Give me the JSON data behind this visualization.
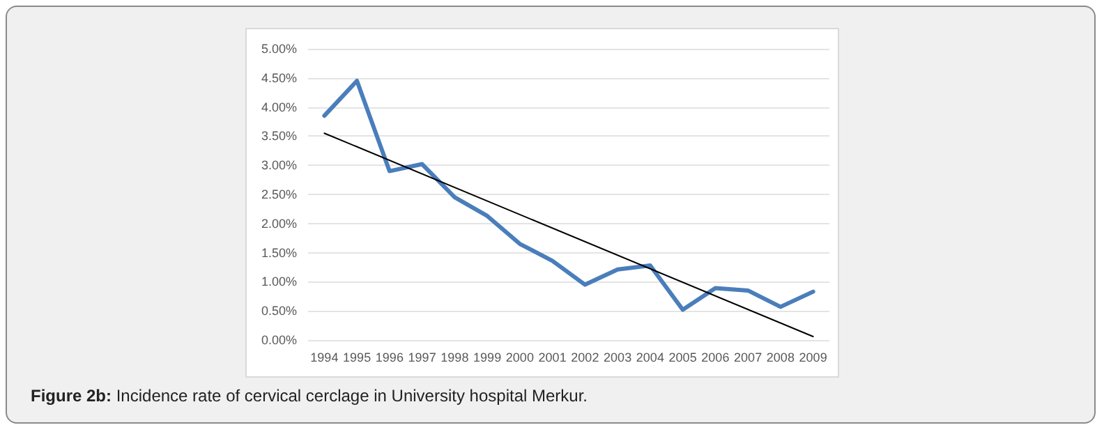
{
  "chart_data": {
    "type": "line",
    "annotations": [
      "Figure 2b: Incidence rate of cervical cerclage in University hospital Merkur."
    ],
    "categories": [
      "1994",
      "1995",
      "1996",
      "1997",
      "1998",
      "1999",
      "2000",
      "2001",
      "2002",
      "2003",
      "2004",
      "2005",
      "2006",
      "2007",
      "2008",
      "2009"
    ],
    "series": [
      {
        "color": "#4a7ebb",
        "values": [
          3.85,
          4.45,
          2.9,
          3.02,
          2.45,
          2.13,
          1.65,
          1.36,
          0.95,
          1.21,
          1.28,
          0.52,
          0.89,
          0.85,
          0.57,
          0.83
        ]
      },
      {
        "type": "line",
        "color": "#000000",
        "values": [
          3.55,
          null,
          null,
          null,
          null,
          null,
          null,
          null,
          null,
          null,
          null,
          null,
          null,
          null,
          null,
          0.06
        ]
      }
    ],
    "ylim": [
      0,
      5
    ],
    "yticks": [
      {
        "value": 0,
        "label": "0.00%"
      },
      {
        "value": 0.5,
        "label": "0.50%"
      },
      {
        "value": 1,
        "label": "1.00%"
      },
      {
        "value": 1.5,
        "label": "1.50%"
      },
      {
        "value": 2,
        "label": "2.00%"
      },
      {
        "value": 2.5,
        "label": "2.50%"
      },
      {
        "value": 3,
        "label": "3.00%"
      },
      {
        "value": 3.5,
        "label": "3.50%"
      },
      {
        "value": 4,
        "label": "4.00%"
      },
      {
        "value": 4.5,
        "label": "4.50%"
      },
      {
        "value": 5,
        "label": "5.00%"
      }
    ],
    "grid": "y",
    "marker": "none",
    "line_style": "solid"
  }
}
